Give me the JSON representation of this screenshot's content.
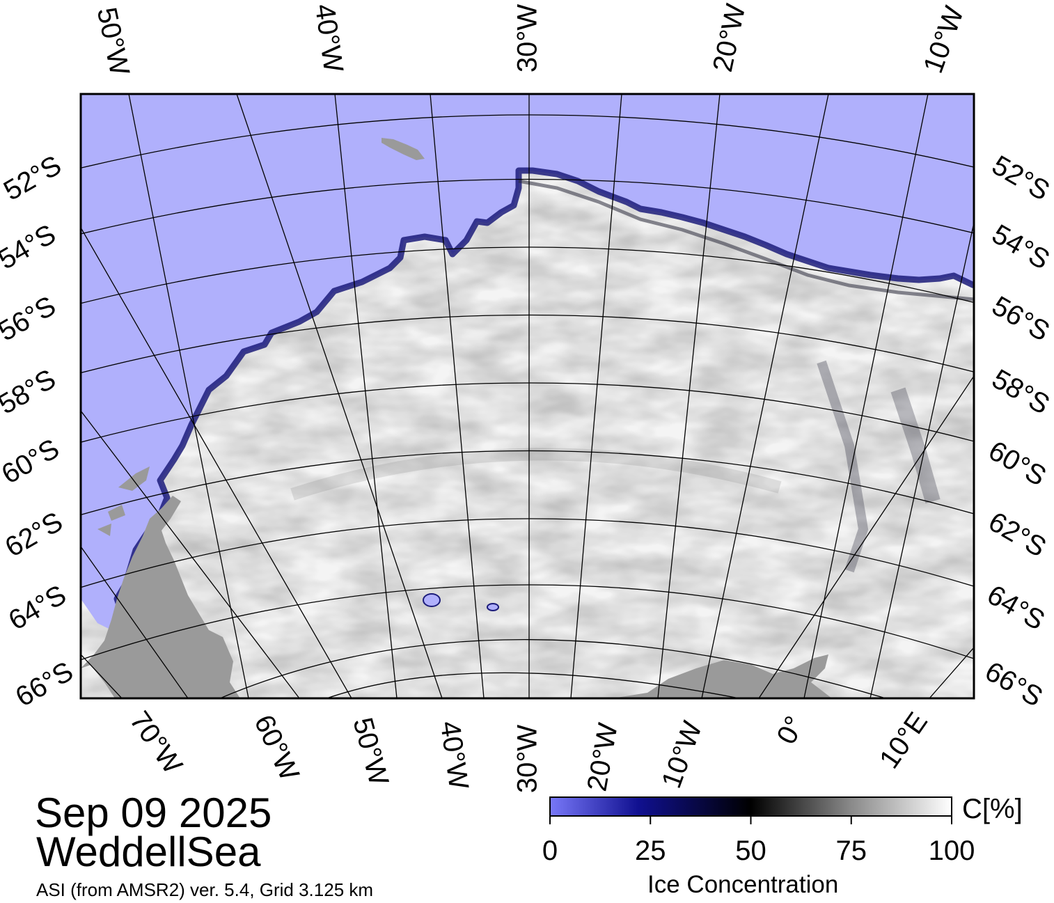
{
  "map": {
    "region": "Weddell Sea",
    "top_labels": [
      "50°W",
      "40°W",
      "30°W",
      "20°W",
      "10°W"
    ],
    "bottom_labels": [
      "70°W",
      "60°W",
      "50°W",
      "40°W",
      "30°W",
      "20°W",
      "10°W",
      "0°",
      "10°E"
    ],
    "left_labels": [
      "52°S",
      "54°S",
      "56°S",
      "58°S",
      "60°S",
      "62°S",
      "64°S",
      "66°S"
    ],
    "right_labels": [
      "52°S",
      "54°S",
      "56°S",
      "58°S",
      "60°S",
      "62°S",
      "64°S",
      "66°S"
    ],
    "colors": {
      "open_water": "#b0b0fc",
      "ice": "#f4f4f4",
      "land": "#9a9a9a",
      "ice_edge": "#1c1c7a",
      "grid": "#000000"
    }
  },
  "header": {
    "date": "Sep 09 2025",
    "region": "WeddellSea",
    "source": "ASI (from AMSR2) ver. 5.4,  Grid 3.125 km"
  },
  "colorbar": {
    "title": "Ice Concentration",
    "unit": "C[%]",
    "ticks": [
      "0",
      "25",
      "50",
      "75",
      "100"
    ],
    "range": [
      0,
      100
    ],
    "stops": [
      "#7878f8",
      "#000078",
      "#000000",
      "#888888",
      "#ffffff"
    ]
  }
}
